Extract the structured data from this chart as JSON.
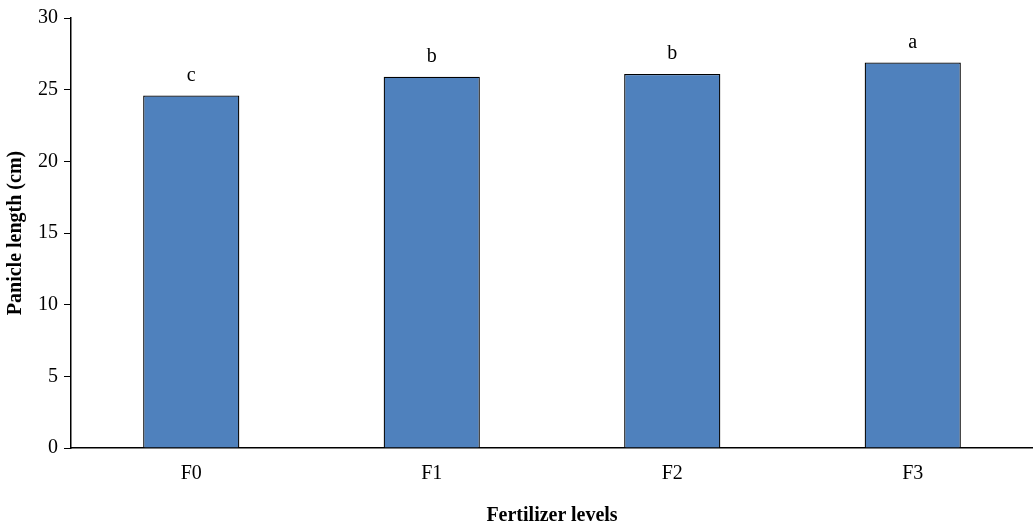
{
  "chart_data": {
    "type": "bar",
    "xlabel": "Fertilizer levels",
    "ylabel": "Panicle length (cm)",
    "categories": [
      "F0",
      "F1",
      "F2",
      "F3"
    ],
    "values": [
      24.6,
      25.9,
      26.1,
      26.9
    ],
    "color": "#4f81bd",
    "ylim": [
      0,
      30
    ],
    "yticks": [
      0,
      5,
      10,
      15,
      20,
      25,
      30
    ],
    "grid": false,
    "legend": false,
    "annotations": [
      {
        "text": "c",
        "x": "F0",
        "y": 24.6
      },
      {
        "text": "b",
        "x": "F1",
        "y": 25.9
      },
      {
        "text": "b",
        "x": "F2",
        "y": 26.1
      },
      {
        "text": "a",
        "x": "F3",
        "y": 26.9
      }
    ]
  }
}
